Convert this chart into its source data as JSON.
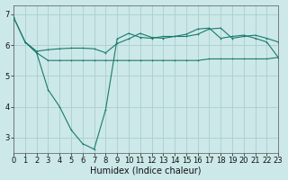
{
  "background_color": "#cce8e8",
  "line_color": "#1a7a6e",
  "grid_color": "#aacece",
  "xlabel": "Humidex (Indice chaleur)",
  "xlabel_fontsize": 7,
  "tick_fontsize": 6,
  "xlim": [
    0,
    23
  ],
  "ylim": [
    2.5,
    7.3
  ],
  "yticks": [
    3,
    4,
    5,
    6,
    7
  ],
  "xticks": [
    0,
    1,
    2,
    3,
    4,
    5,
    6,
    7,
    8,
    9,
    10,
    11,
    12,
    13,
    14,
    15,
    16,
    17,
    18,
    19,
    20,
    21,
    22,
    23
  ],
  "line1_x": [
    0,
    1,
    2,
    3,
    4,
    5,
    6,
    7,
    8,
    9,
    10,
    11,
    12,
    13,
    14,
    15,
    16,
    17,
    18,
    19,
    20,
    21,
    22,
    23
  ],
  "line1_y": [
    6.9,
    6.1,
    5.75,
    5.5,
    5.5,
    5.5,
    5.5,
    5.5,
    5.5,
    5.5,
    5.5,
    5.5,
    5.5,
    5.5,
    5.5,
    5.5,
    5.5,
    5.55,
    5.55,
    5.55,
    5.55,
    5.55,
    5.55,
    5.6
  ],
  "line2_x": [
    0,
    1,
    2,
    3,
    4,
    5,
    6,
    7,
    8,
    9,
    10,
    11,
    12,
    13,
    14,
    15,
    16,
    17,
    18,
    19,
    20,
    21,
    22,
    23
  ],
  "line2_y": [
    6.9,
    6.1,
    5.8,
    5.85,
    5.88,
    5.9,
    5.9,
    5.88,
    5.75,
    6.05,
    6.2,
    6.38,
    6.25,
    6.22,
    6.28,
    6.28,
    6.35,
    6.52,
    6.55,
    6.22,
    6.28,
    6.32,
    6.22,
    6.1
  ],
  "line3_x": [
    1,
    2,
    3,
    4,
    5,
    6,
    7,
    8,
    9,
    10,
    11,
    12,
    13,
    14,
    15,
    16,
    17,
    18,
    19,
    20,
    21,
    22,
    23
  ],
  "line3_y": [
    6.1,
    5.75,
    4.55,
    4.0,
    3.25,
    2.8,
    2.62,
    3.9,
    6.2,
    6.38,
    6.25,
    6.22,
    6.28,
    6.28,
    6.35,
    6.52,
    6.55,
    6.22,
    6.28,
    6.32,
    6.22,
    6.1,
    5.6
  ]
}
